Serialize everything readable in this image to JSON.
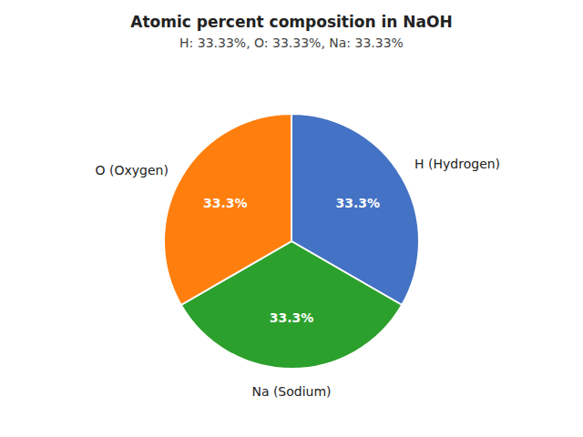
{
  "chart_data": {
    "type": "pie",
    "title": "Atomic percent composition in NaOH",
    "subtitle": "H: 33.33%, O: 33.33%, Na: 33.33%",
    "categories": [
      "H (Hydrogen)",
      "Na (Sodium)",
      "O (Oxygen)"
    ],
    "values": [
      33.3,
      33.3,
      33.3
    ],
    "value_labels": [
      "33.3%",
      "33.3%",
      "33.3%"
    ],
    "colors": [
      "#4472c4",
      "#2ca02c",
      "#ff7f0e"
    ],
    "data_labels": true
  }
}
